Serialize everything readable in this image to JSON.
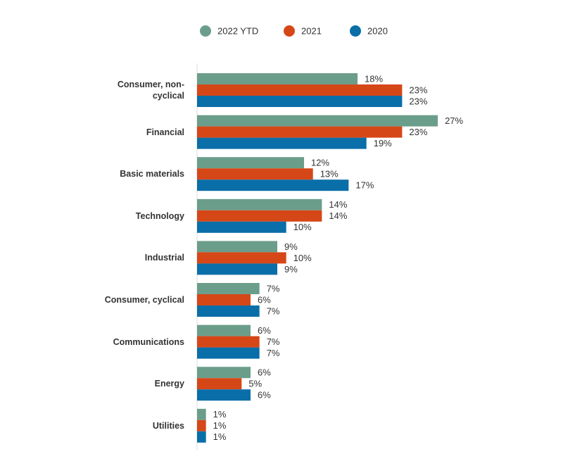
{
  "chart_data": {
    "type": "bar",
    "orientation": "horizontal",
    "categories": [
      "Consumer, non-cyclical",
      "Financial",
      "Basic materials",
      "Technology",
      "Industrial",
      "Consumer, cyclical",
      "Communications",
      "Energy",
      "Utilities"
    ],
    "series": [
      {
        "name": "2022 YTD",
        "color": "#6b9e8a",
        "values": [
          18,
          27,
          12,
          14,
          9,
          7,
          6,
          6,
          1
        ],
        "value_labels": [
          "18%",
          "27%",
          "12%",
          "14%",
          "9%",
          "7%",
          "6%",
          "6%",
          "1%"
        ]
      },
      {
        "name": "2021",
        "color": "#d64718",
        "values": [
          23,
          23,
          13,
          14,
          10,
          6,
          7,
          5,
          1
        ],
        "value_labels": [
          "23%",
          "23%",
          "13%",
          "14%",
          "10%",
          "6%",
          "7%",
          "5%",
          "1%"
        ]
      },
      {
        "name": "2020",
        "color": "#0a6ea8",
        "values": [
          23,
          19,
          17,
          10,
          9,
          7,
          7,
          6,
          1
        ],
        "value_labels": [
          "23%",
          "19%",
          "17%",
          "10%",
          "9%",
          "7%",
          "7%",
          "6%",
          "1%"
        ]
      }
    ],
    "legend": "top"
  }
}
